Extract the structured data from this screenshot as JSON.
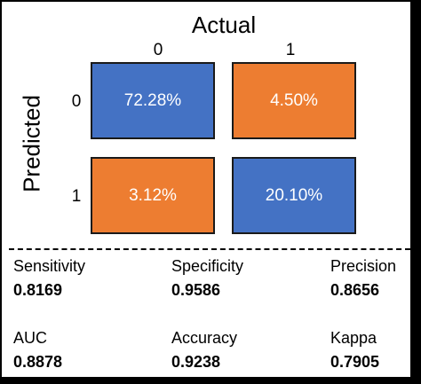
{
  "chart_data": {
    "type": "heatmap",
    "title": "Actual",
    "xlabel": "Actual",
    "ylabel": "Predicted",
    "x_categories": [
      "0",
      "1"
    ],
    "y_categories": [
      "0",
      "1"
    ],
    "cells": [
      {
        "predicted": "0",
        "actual": "0",
        "value": 72.28,
        "label": "72.28%",
        "color": "#4472C4"
      },
      {
        "predicted": "0",
        "actual": "1",
        "value": 4.5,
        "label": "4.50%",
        "color": "#ED7D31"
      },
      {
        "predicted": "1",
        "actual": "0",
        "value": 3.12,
        "label": "3.12%",
        "color": "#ED7D31"
      },
      {
        "predicted": "1",
        "actual": "1",
        "value": 20.1,
        "label": "20.10%",
        "color": "#4472C4"
      }
    ]
  },
  "metrics": [
    {
      "name": "Sensitivity",
      "value": "0.8169"
    },
    {
      "name": "Specificity",
      "value": "0.9586"
    },
    {
      "name": "Precision",
      "value": "0.8656"
    },
    {
      "name": "AUC",
      "value": "0.8878"
    },
    {
      "name": "Accuracy",
      "value": "0.9238"
    },
    {
      "name": "Kappa",
      "value": "0.7905"
    }
  ],
  "colors": {
    "blue": "#4472C4",
    "orange": "#ED7D31"
  }
}
